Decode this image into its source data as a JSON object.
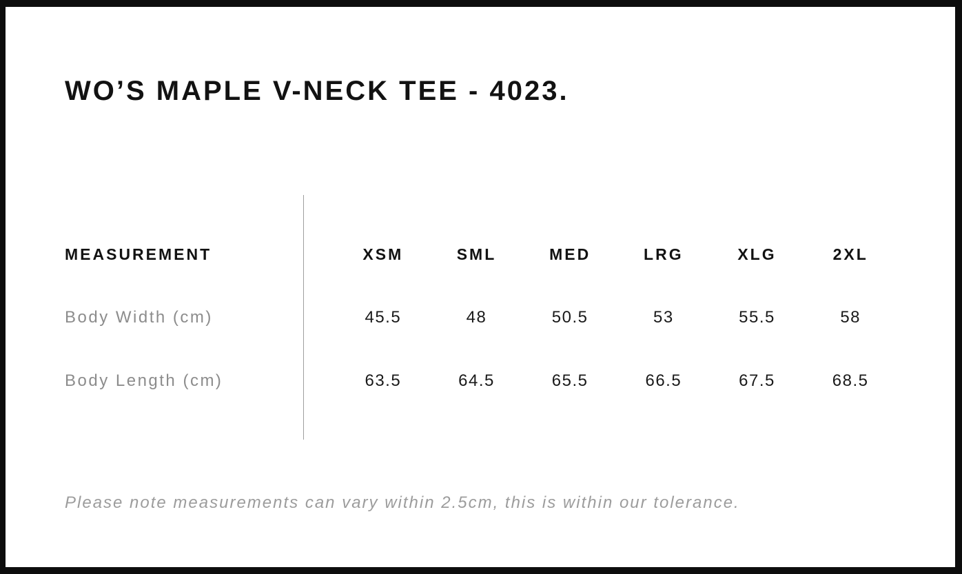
{
  "page": {
    "title": "WO’S MAPLE V-NECK TEE - 4023.",
    "note": "Please note measurements can vary within 2.5cm, this is within our tolerance."
  },
  "table": {
    "measurement_header": "MEASUREMENT",
    "size_headers": [
      "XSM",
      "SML",
      "MED",
      "LRG",
      "XLG",
      "2XL"
    ],
    "rows": [
      {
        "label": "Body Width (cm)",
        "values": [
          "45.5",
          "48",
          "50.5",
          "53",
          "55.5",
          "58"
        ]
      },
      {
        "label": "Body Length (cm)",
        "values": [
          "63.5",
          "64.5",
          "65.5",
          "66.5",
          "67.5",
          "68.5"
        ]
      }
    ]
  },
  "chart_data": {
    "type": "table",
    "title": "WO’S MAPLE V-NECK TEE - 4023.",
    "columns": [
      "MEASUREMENT",
      "XSM",
      "SML",
      "MED",
      "LRG",
      "XLG",
      "2XL"
    ],
    "rows": [
      [
        "Body Width (cm)",
        45.5,
        48,
        50.5,
        53,
        55.5,
        58
      ],
      [
        "Body Length (cm)",
        63.5,
        64.5,
        65.5,
        66.5,
        67.5,
        68.5
      ]
    ],
    "footnote": "Please note measurements can vary within 2.5cm, this is within our tolerance."
  },
  "colors": {
    "frame_border": "#0d0d0d",
    "text_primary": "#121212",
    "label_gray": "#8c8c8c",
    "note_gray": "#9c9c9c",
    "divider_gray": "#9e9e9e",
    "background": "#ffffff"
  }
}
